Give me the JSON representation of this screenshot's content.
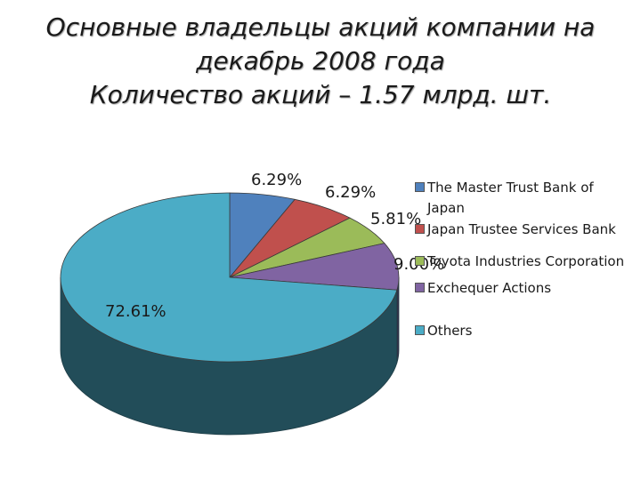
{
  "title_lines": [
    "Основные владельцы акций компании на",
    "декабрь 2008 года",
    "Количество акций – 1.57 млрд. шт."
  ],
  "chart_data": {
    "type": "pie",
    "variant": "3d",
    "legend_position": "right",
    "series": [
      {
        "name": "The Master Trust Bank of Japan",
        "value": 6.29,
        "label": "6.29%",
        "color": "#4F81BD"
      },
      {
        "name": "Japan Trustee Services Bank",
        "value": 6.29,
        "label": "6.29%",
        "color": "#C0504D"
      },
      {
        "name": "Toyota Industries Corporation",
        "value": 5.81,
        "label": "5.81%",
        "color": "#9BBB59"
      },
      {
        "name": "Exchequer Actions",
        "value": 9.0,
        "label": "9.00%",
        "color": "#8064A2"
      },
      {
        "name": "Others",
        "value": 72.61,
        "label": "72.61%",
        "color": "#4BACC6"
      }
    ]
  }
}
